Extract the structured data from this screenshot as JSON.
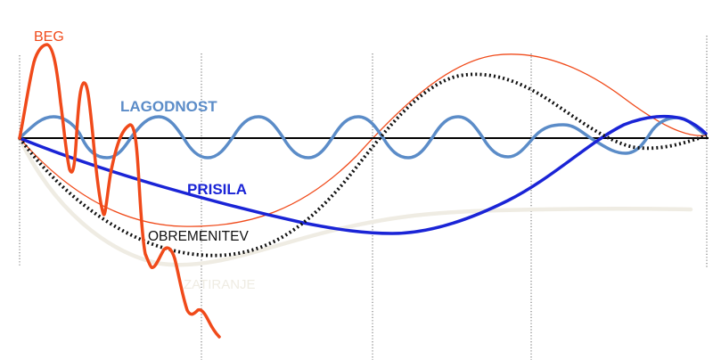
{
  "labels": {
    "beg": "BEG",
    "lagodnost": "LAGODNOST",
    "prisila": "PRISILA",
    "obremenitev": "OBREMENITEV",
    "zatiranje": "ZATIRANJE"
  },
  "colors": {
    "beg": "#f04a1a",
    "lagodnost": "#5b8cc8",
    "prisila": "#1a24d6",
    "obremenitev": "#111111",
    "zatiranje": "#efece3",
    "thin_red": "#f04a1a",
    "axis": "#000000",
    "gridline": "#666666"
  }
}
